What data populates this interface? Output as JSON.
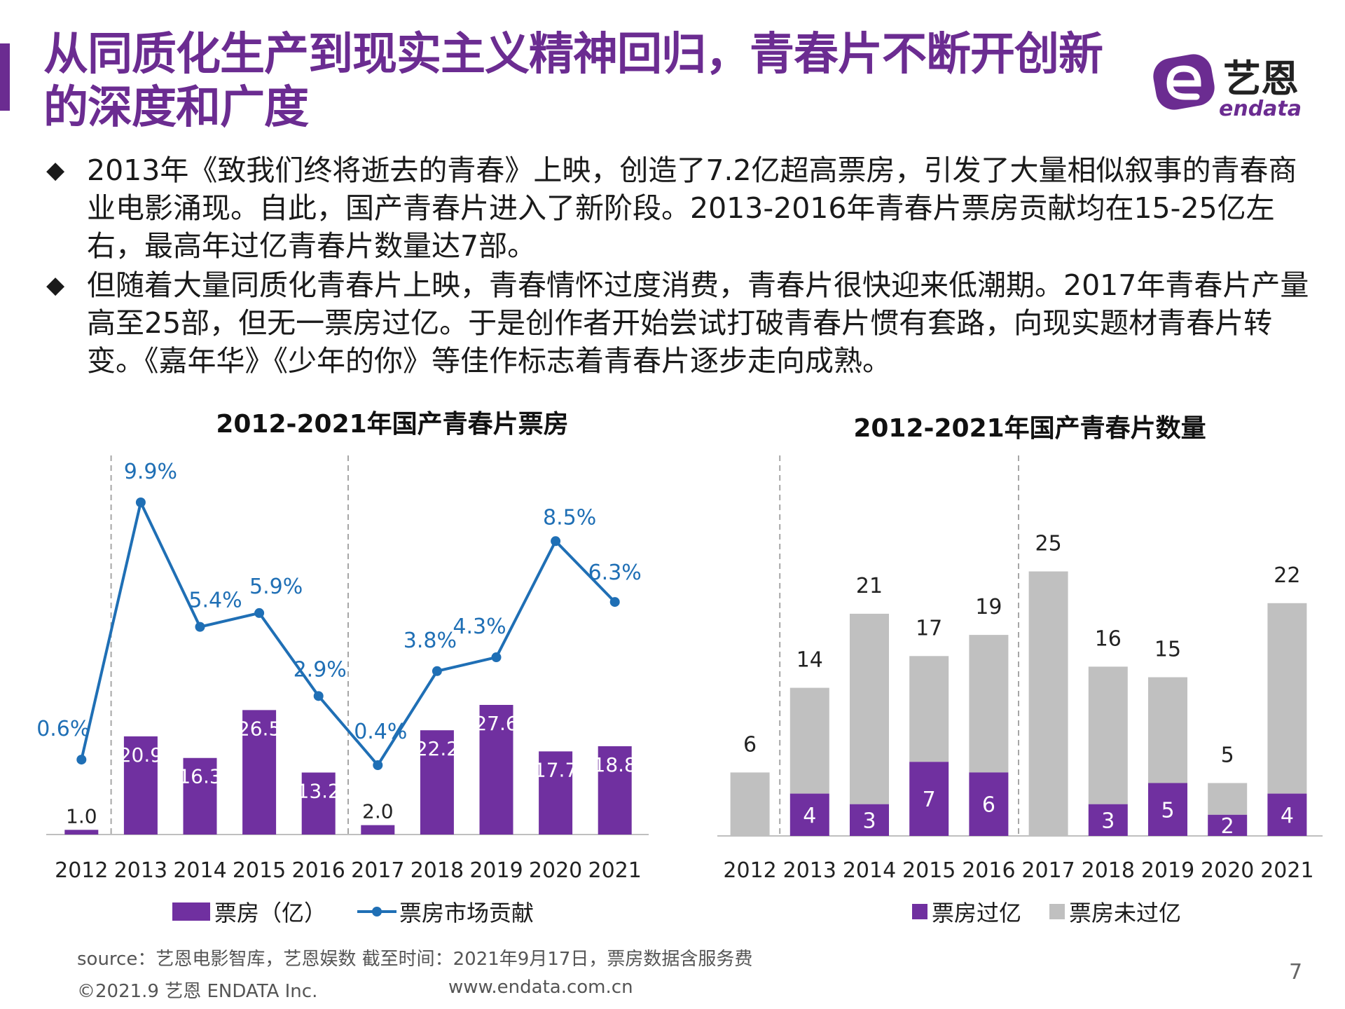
{
  "header": {
    "title": "从同质化生产到现实主义精神回归，青春片不断开创新的深度和广度",
    "logo_name": "艺恩",
    "logo_sub": "endata"
  },
  "bullets": [
    "2013年《致我们终将逝去的青春》上映，创造了7.2亿超高票房，引发了大量相似叙事的青春商业电影涌现。自此，国产青春片进入了新阶段。2013-2016年青春片票房贡献均在15-25亿左右，最高年过亿青春片数量达7部。",
    "但随着大量同质化青春片上映，青春情怀过度消费，青春片很快迎来低潮期。2017年青春片产量高至25部，但无一票房过亿。于是创作者开始尝试打破青春片惯有套路，向现实题材青春片转变。《嘉年华》《少年的你》等佳作标志着青春片逐步走向成熟。"
  ],
  "bullet_marker": "◆",
  "legend": {
    "left_bar": "票房（亿）",
    "left_line": "票房市场贡献",
    "right_a": "票房过亿",
    "right_b": "票房未过亿"
  },
  "footer": {
    "source": "source：艺恩电影智库，艺恩娱数      截至时间：2021年9月17日，票房数据含服务费",
    "copyright": "©2021.9 艺恩 ENDATA Inc.",
    "website": "www.endata.com.cn",
    "page": "7"
  },
  "colors": {
    "purple": "#7030a0",
    "blue": "#1f6fb5",
    "gray": "#c0c0c0",
    "brand": "#6b2c91"
  },
  "chart_data": [
    {
      "type": "bar+line",
      "title": "2012-2021年国产青春片票房",
      "categories": [
        "2012",
        "2013",
        "2014",
        "2015",
        "2016",
        "2017",
        "2018",
        "2019",
        "2020",
        "2021"
      ],
      "series": [
        {
          "name": "票房（亿）",
          "type": "bar",
          "values": [
            1.0,
            20.9,
            16.3,
            26.5,
            13.2,
            2.0,
            22.2,
            27.6,
            17.7,
            18.8
          ],
          "labels": [
            "1.0",
            "20.9",
            "16.3",
            "26.5",
            "13.2",
            "2.0",
            "22.2",
            "27.6",
            "17.7",
            "18.8"
          ]
        },
        {
          "name": "票房市场贡献",
          "type": "line",
          "values": [
            0.6,
            9.9,
            5.4,
            5.9,
            2.9,
            0.4,
            3.8,
            4.3,
            8.5,
            6.3
          ],
          "labels": [
            "0.6%",
            "9.9%",
            "5.4%",
            "5.9%",
            "2.9%",
            "0.4%",
            "3.8%",
            "4.3%",
            "8.5%",
            "6.3%"
          ]
        }
      ],
      "separators_after": [
        "2012",
        "2016"
      ]
    },
    {
      "type": "stacked-bar",
      "title": "2012-2021年国产青春片数量",
      "categories": [
        "2012",
        "2013",
        "2014",
        "2015",
        "2016",
        "2017",
        "2018",
        "2019",
        "2020",
        "2021"
      ],
      "totals": [
        6,
        14,
        21,
        17,
        19,
        25,
        16,
        15,
        5,
        22
      ],
      "series": [
        {
          "name": "票房过亿",
          "values": [
            0,
            4,
            3,
            7,
            6,
            0,
            3,
            5,
            2,
            4
          ]
        },
        {
          "name": "票房未过亿",
          "values": [
            6,
            10,
            18,
            10,
            13,
            25,
            13,
            10,
            3,
            18
          ]
        }
      ],
      "separators_after": [
        "2012",
        "2016"
      ]
    }
  ]
}
